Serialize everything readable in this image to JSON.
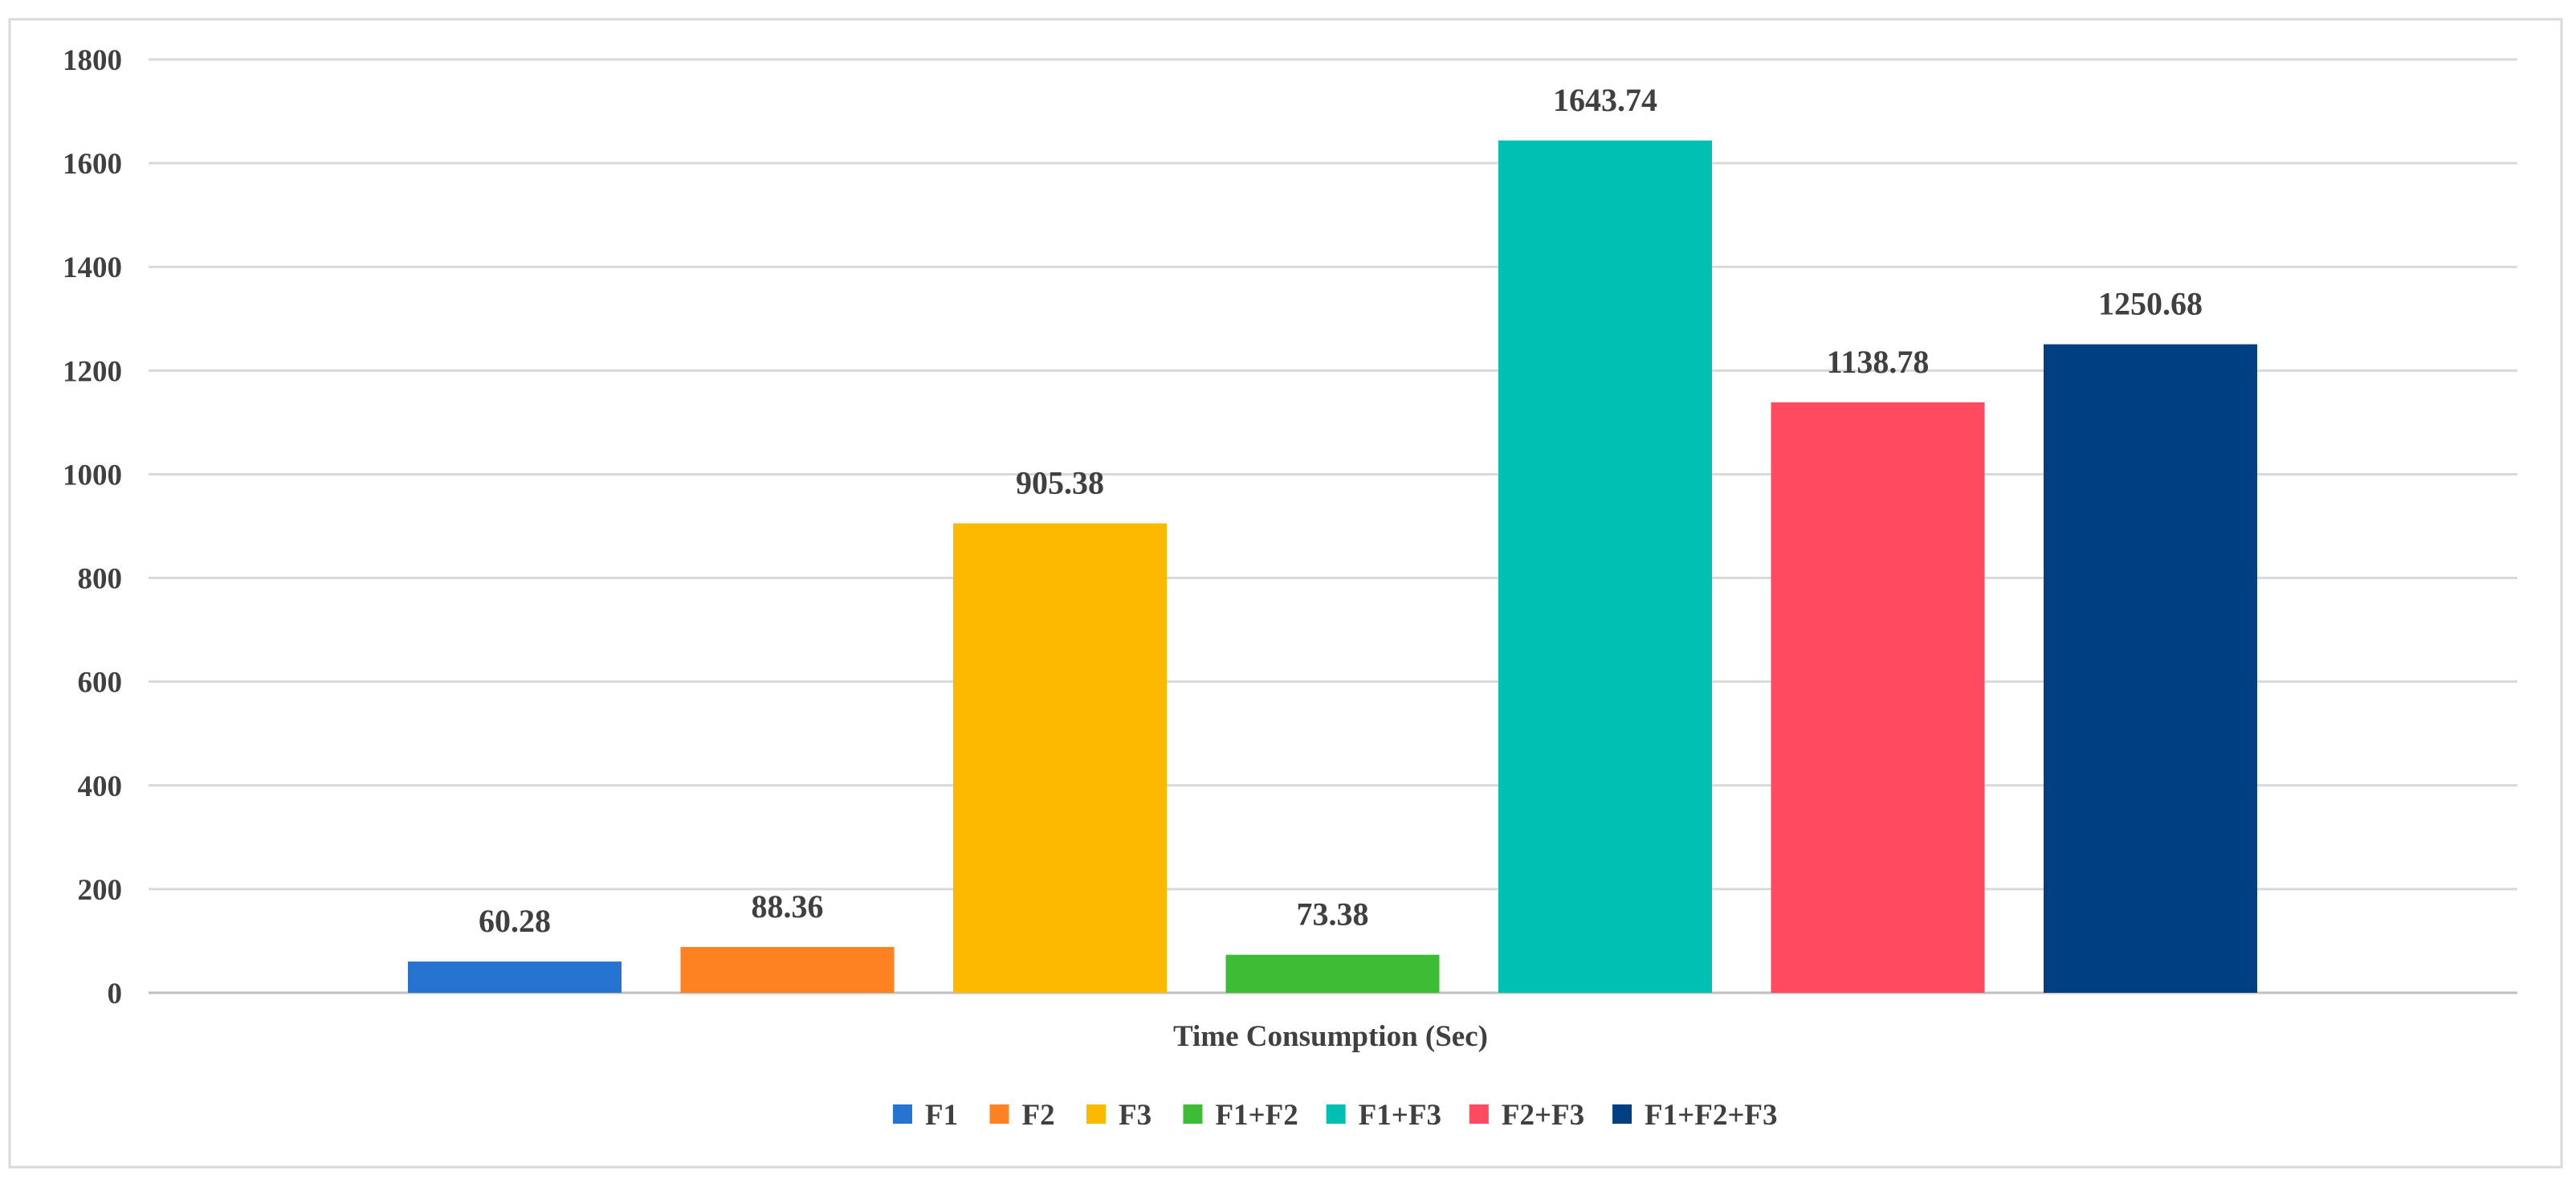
{
  "chart_data": {
    "type": "bar",
    "title": "",
    "xlabel": "Time Consumption (Sec)",
    "ylabel": "",
    "ylim": [
      0,
      1800
    ],
    "yticks": [
      0,
      200,
      400,
      600,
      800,
      1000,
      1200,
      1400,
      1600,
      1800
    ],
    "grid": true,
    "legend_position": "bottom",
    "categories": [
      "Time Consumption (Sec)"
    ],
    "series": [
      {
        "name": "F1",
        "values": [
          60.28
        ],
        "label": "60.28",
        "color": "#2673D1"
      },
      {
        "name": "F2",
        "values": [
          88.36
        ],
        "label": "88.36",
        "color": "#FF8222"
      },
      {
        "name": "F3",
        "values": [
          905.38
        ],
        "label": "905.38",
        "color": "#FDB900"
      },
      {
        "name": "F1+F2",
        "values": [
          73.38
        ],
        "label": "73.38",
        "color": "#3DBD36"
      },
      {
        "name": "F1+F3",
        "values": [
          1643.74
        ],
        "label": "1643.74",
        "color": "#00C0B4"
      },
      {
        "name": "F2+F3",
        "values": [
          1138.78
        ],
        "label": "1138.78",
        "color": "#FF4A5F"
      },
      {
        "name": "F1+F2+F3",
        "values": [
          1250.68
        ],
        "label": "1250.68",
        "color": "#003F82"
      }
    ]
  }
}
